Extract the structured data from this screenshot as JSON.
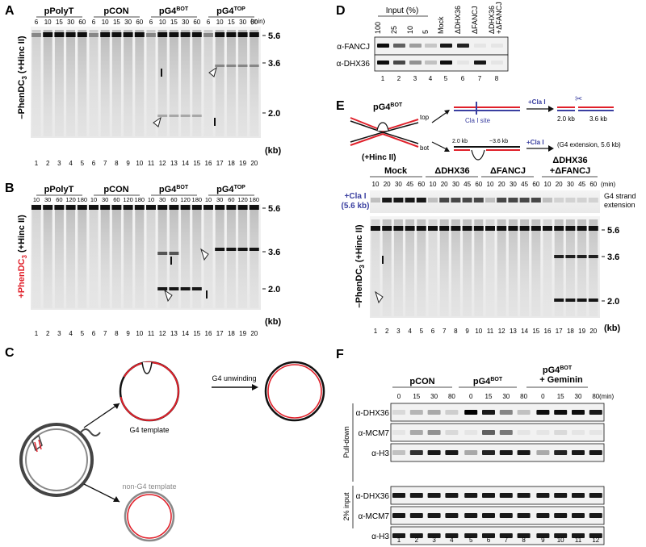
{
  "panels": {
    "A": {
      "letter": "A",
      "groups": [
        "pPolyT",
        "pCON",
        "pG4",
        "pG4"
      ],
      "group_sup": [
        "",
        "",
        "BOT",
        "TOP"
      ],
      "times": [
        "6",
        "10",
        "15",
        "30",
        "60",
        "6",
        "10",
        "15",
        "30",
        "60",
        "6",
        "10",
        "15",
        "30",
        "60",
        "6",
        "10",
        "15",
        "30",
        "60"
      ],
      "unit": "(min)",
      "ylabel": "–PhenDC",
      "ylabel_sub": "3",
      "ylabel_suffix": " (+Hinc II)",
      "markers": [
        "5.6",
        "3.6",
        "2.0"
      ],
      "kb": "(kb)",
      "lanes": [
        "1",
        "2",
        "3",
        "4",
        "5",
        "6",
        "7",
        "8",
        "9",
        "10",
        "11",
        "12",
        "13",
        "14",
        "15",
        "16",
        "17",
        "18",
        "19",
        "20"
      ]
    },
    "B": {
      "letter": "B",
      "groups": [
        "pPolyT",
        "pCON",
        "pG4",
        "pG4"
      ],
      "group_sup": [
        "",
        "",
        "BOT",
        "TOP"
      ],
      "times": [
        "10",
        "30",
        "60",
        "120",
        "180",
        "10",
        "30",
        "60",
        "120",
        "180",
        "10",
        "30",
        "60",
        "120",
        "180",
        "10",
        "30",
        "60",
        "120",
        "180"
      ],
      "ylabel": "+PhenDC",
      "ylabel_sub": "3",
      "ylabel_suffix": " (+Hinc II)",
      "markers": [
        "5.6",
        "3.6",
        "2.0"
      ],
      "kb": "(kb)",
      "lanes": [
        "1",
        "2",
        "3",
        "4",
        "5",
        "6",
        "7",
        "8",
        "9",
        "10",
        "11",
        "12",
        "13",
        "14",
        "15",
        "16",
        "17",
        "18",
        "19",
        "20"
      ]
    },
    "C": {
      "letter": "C",
      "g4_unwinding": "G4 unwinding",
      "g4_template": "G4 template",
      "non_g4_template": "non-G4 template"
    },
    "D": {
      "letter": "D",
      "input": "Input (%)",
      "cols": [
        "100",
        "25",
        "10",
        "5",
        "Mock",
        "ΔDHX36",
        "ΔFANCJ",
        "ΔDHX36\n+ΔFANCJ"
      ],
      "rows": [
        "α-FANCJ",
        "α-DHX36"
      ],
      "lanes": [
        "1",
        "2",
        "3",
        "4",
        "5",
        "6",
        "7",
        "8"
      ]
    },
    "E": {
      "letter": "E",
      "plasmid": "pG4",
      "plasmid_sup": "BOT",
      "hinc": "(+Hinc II)",
      "top": "top",
      "bot": "bot",
      "cla_site": "Cla I site",
      "cla_arrow": "+Cla I",
      "frag_a": "2.0 kb",
      "frag_b": "3.6 kb",
      "frag_c": "2.0 kb",
      "frag_d": "~3.6 kb",
      "g4_ext": "(G4 extension, 5.6 kb)",
      "groups": [
        "Mock",
        "ΔDHX36",
        "ΔFANCJ",
        "ΔDHX36\n+ΔFANCJ"
      ],
      "times": [
        "10",
        "20",
        "30",
        "45",
        "60",
        "10",
        "20",
        "30",
        "45",
        "60",
        "10",
        "20",
        "30",
        "45",
        "60",
        "10",
        "20",
        "30",
        "45",
        "60"
      ],
      "unit": "(min)",
      "clai_label": "+Cla I",
      "clai_kb": "(5.6 kb)",
      "strand_ext": "G4 strand\nextension",
      "ylabel": "–PhenDC",
      "ylabel_sub": "3",
      "ylabel_suffix": " (+Hinc II)",
      "markers": [
        "5.6",
        "3.6",
        "2.0"
      ],
      "kb": "(kb)",
      "lanes": [
        "1",
        "2",
        "3",
        "4",
        "5",
        "6",
        "7",
        "8",
        "9",
        "10",
        "11",
        "12",
        "13",
        "14",
        "15",
        "16",
        "17",
        "18",
        "19",
        "20"
      ]
    },
    "F": {
      "letter": "F",
      "groups": [
        "pCON",
        "pG4",
        "pG4"
      ],
      "group_sup": [
        "",
        "BOT",
        "BOT"
      ],
      "geminin": "+ Geminin",
      "times": [
        "0",
        "15",
        "30",
        "80",
        "0",
        "15",
        "30",
        "80",
        "0",
        "15",
        "30",
        "80"
      ],
      "unit": "(min)",
      "pulldown": "Pull-down",
      "input2": "2% input",
      "rows": [
        "α-DHX36",
        "α-MCM7",
        "α-H3",
        "α-DHX36",
        "α-MCM7",
        "α-H3"
      ],
      "lanes": [
        "1",
        "2",
        "3",
        "4",
        "5",
        "6",
        "7",
        "8",
        "9",
        "10",
        "11",
        "12"
      ]
    }
  },
  "colors": {
    "red": "#e0202a",
    "blue": "#3a3fa0",
    "black": "#111111"
  }
}
